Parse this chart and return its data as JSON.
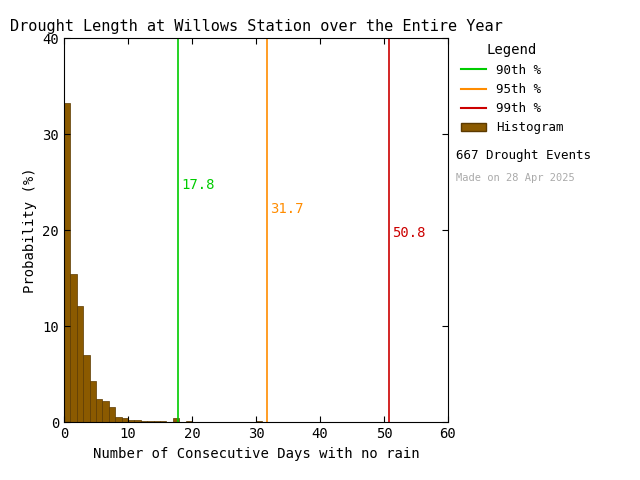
{
  "title": "Drought Length at Willows Station over the Entire Year",
  "xlabel": "Number of Consecutive Days with no rain",
  "ylabel": "Probability (%)",
  "xlim": [
    0,
    60
  ],
  "ylim": [
    0,
    40
  ],
  "xticks": [
    0,
    10,
    20,
    30,
    40,
    50,
    60
  ],
  "yticks": [
    0,
    10,
    20,
    30,
    40
  ],
  "bar_color": "#8B5A00",
  "bar_edge_color": "#5C3A00",
  "percentile_90": 17.8,
  "percentile_95": 31.7,
  "percentile_99": 50.8,
  "color_90": "#00CC00",
  "color_95": "#FF8C00",
  "color_99": "#CC0000",
  "n_events": 667,
  "watermark": "Made on 28 Apr 2025",
  "watermark_color": "#aaaaaa",
  "legend_title": "Legend",
  "ann_90_x": 18.3,
  "ann_90_y": 25.5,
  "ann_95_x": 32.2,
  "ann_95_y": 23.0,
  "ann_99_x": 51.3,
  "ann_99_y": 20.5,
  "bin_values": [
    33.28,
    15.44,
    12.14,
    7.05,
    4.35,
    2.4,
    2.25,
    1.64,
    0.6,
    0.45,
    0.3,
    0.3,
    0.15,
    0.15,
    0.15,
    0.15,
    0.0,
    0.45,
    0.0,
    0.15,
    0.0,
    0.0,
    0.0,
    0.0,
    0.0,
    0.0,
    0.0,
    0.0,
    0.0,
    0.0,
    0.15,
    0.0,
    0.0,
    0.0,
    0.0,
    0.0,
    0.0,
    0.0,
    0.0,
    0.0,
    0.0,
    0.0,
    0.0,
    0.0,
    0.0,
    0.0,
    0.0,
    0.0,
    0.0,
    0.0,
    0.0,
    0.0,
    0.0,
    0.0,
    0.0,
    0.0,
    0.0,
    0.0,
    0.0,
    0.0
  ],
  "background_color": "#ffffff",
  "fig_width": 6.4,
  "fig_height": 4.8,
  "dpi": 100
}
